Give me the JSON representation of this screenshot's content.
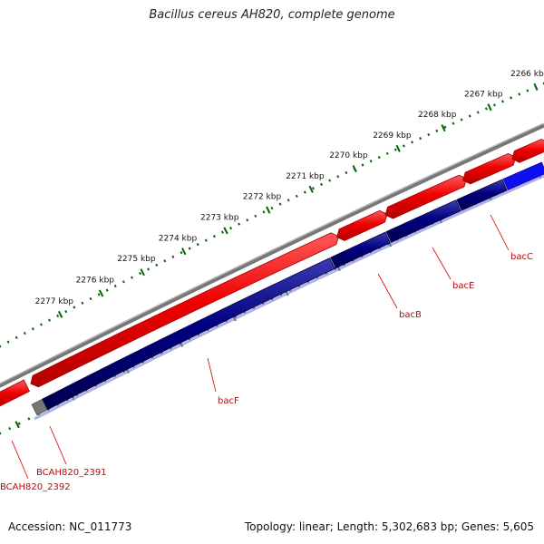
{
  "title": "Bacillus cereus AH820, complete genome",
  "footer": {
    "accession": "Accession: NC_011773",
    "summary": "Topology: linear; Length: 5,302,683 bp; Genes: 5,605"
  },
  "axis": {
    "ticks": [
      {
        "kbp": 2266,
        "label": "2266 kbp"
      },
      {
        "kbp": 2267,
        "label": "2267 kbp"
      },
      {
        "kbp": 2268,
        "label": "2268 kbp"
      },
      {
        "kbp": 2269,
        "label": "2269 kbp"
      },
      {
        "kbp": 2270,
        "label": "2270 kbp"
      },
      {
        "kbp": 2271,
        "label": "2271 kbp"
      },
      {
        "kbp": 2272,
        "label": "2272 kbp"
      },
      {
        "kbp": 2273,
        "label": "2273 kbp"
      },
      {
        "kbp": 2274,
        "label": "2274 kbp"
      },
      {
        "kbp": 2275,
        "label": "2275 kbp"
      },
      {
        "kbp": 2276,
        "label": "2276 kbp"
      },
      {
        "kbp": 2277,
        "label": "2277 kbp"
      }
    ]
  },
  "genes": [
    {
      "label": "bacC"
    },
    {
      "label": "bacE"
    },
    {
      "label": "bacB"
    },
    {
      "label": "bacF"
    },
    {
      "label": "BCAH820_2391"
    },
    {
      "label": "BCAH820_2392"
    }
  ],
  "colors": {
    "backbone": "#777777",
    "forward_cds": "#ee0000",
    "reverse_gene": "#000080",
    "reverse_gene_highlight": "#1010ee",
    "tick": "#006600",
    "label": "#cc0000"
  }
}
